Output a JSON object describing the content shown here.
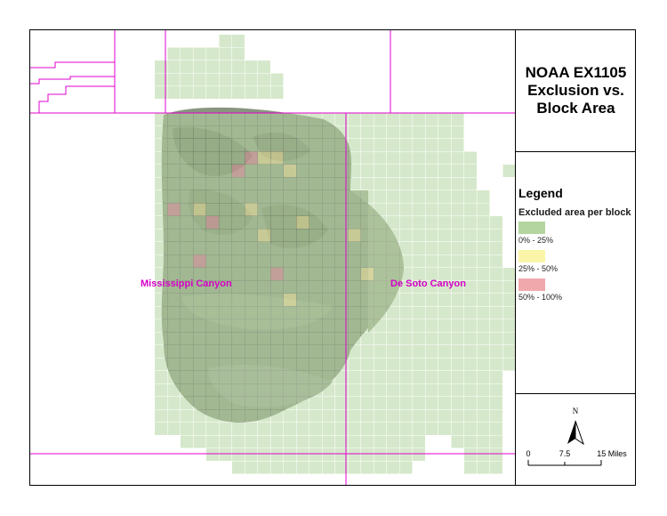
{
  "title": "NOAA EX1105\nExclusion vs.\nBlock Area",
  "legend": {
    "heading": "Legend",
    "subheading": "Excluded area per block",
    "classes": [
      {
        "label": "0% - 25%",
        "color": "#b5d5a0"
      },
      {
        "label": "25% - 50%",
        "color": "#fbf5a8"
      },
      {
        "label": "50% - 100%",
        "color": "#f1a8ad"
      }
    ]
  },
  "map_labels": {
    "mississippi": "Mississippi Canyon",
    "desoto": "De Soto Canyon"
  },
  "north_arrow": {
    "letter": "N"
  },
  "scale_bar": {
    "ticks": [
      "0",
      "7.5",
      "15 Miles"
    ]
  },
  "colors": {
    "boundary_lines": "#e000d0",
    "terrain": "#8f9a86",
    "label_magenta": "#d400c8"
  }
}
